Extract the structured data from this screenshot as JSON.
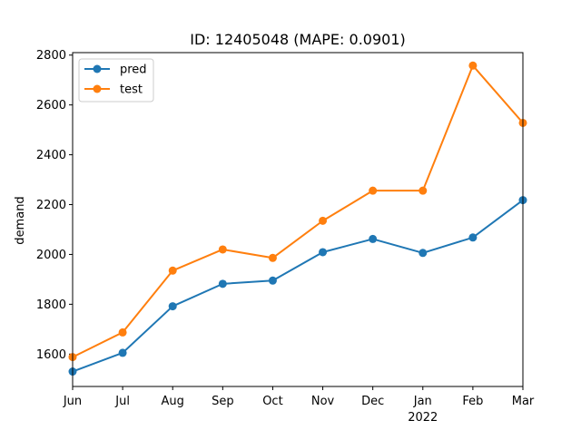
{
  "chart_data": {
    "type": "line",
    "title": "ID: 12405048 (MAPE: 0.0901)",
    "xlabel": "",
    "ylabel": "demand",
    "categories": [
      "Jun",
      "Jul",
      "Aug",
      "Sep",
      "Oct",
      "Nov",
      "Dec",
      "Jan",
      "Feb",
      "Mar"
    ],
    "year_label": {
      "under": "Jan",
      "text": "2022"
    },
    "ylim": [
      1470,
      2810
    ],
    "yticks": [
      1600,
      1800,
      2000,
      2200,
      2400,
      2600,
      2800
    ],
    "grid": false,
    "legend_position": "upper-left",
    "series": [
      {
        "name": "pred",
        "color": "#1f77b4",
        "values": [
          1530,
          1605,
          1792,
          1882,
          1895,
          2009,
          2062,
          2006,
          2068,
          2218
        ]
      },
      {
        "name": "test",
        "color": "#ff7f0e",
        "values": [
          1588,
          1687,
          1935,
          2020,
          1986,
          2135,
          2256,
          2256,
          2758,
          2528
        ]
      }
    ]
  }
}
